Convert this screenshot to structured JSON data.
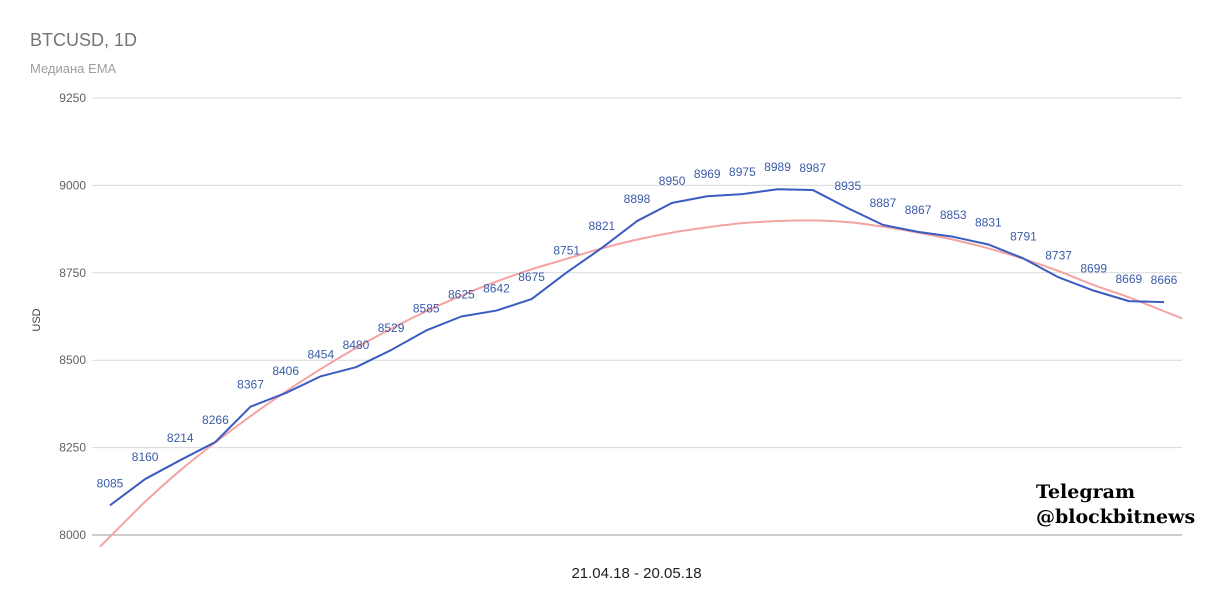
{
  "chart_data": {
    "type": "line",
    "title": "BTCUSD, 1D",
    "subtitle": "Медиана EMA",
    "xlabel": "21.04.18 - 20.05.18",
    "ylabel": "USD",
    "ylim": [
      8000,
      9250
    ],
    "yticks": [
      8000,
      8250,
      8500,
      8750,
      9000,
      9250
    ],
    "grid": true,
    "legend": "none",
    "series": [
      {
        "values": [
          8085,
          8160,
          8214,
          8266,
          8367,
          8406,
          8454,
          8480,
          8529,
          8585,
          8625,
          8642,
          8675,
          8751,
          8821,
          8898,
          8950,
          8969,
          8975,
          8989,
          8987,
          8935,
          8887,
          8867,
          8853,
          8831,
          8791,
          8737,
          8699,
          8669,
          8666
        ],
        "color": "#3a5cc0",
        "data_labels": true
      },
      {
        "values": [
          7995,
          8095,
          8185,
          8265,
          8340,
          8410,
          8475,
          8535,
          8590,
          8640,
          8685,
          8725,
          8760,
          8790,
          8820,
          8845,
          8865,
          8880,
          8892,
          8898,
          8900,
          8895,
          8882,
          8865,
          8845,
          8820,
          8790,
          8755,
          8715,
          8680,
          8640
        ],
        "color": "#f4a3a3",
        "smooth": true,
        "data_labels": false
      }
    ]
  },
  "watermark": {
    "line1": "Telegram",
    "line2": "@blockbitnews"
  }
}
